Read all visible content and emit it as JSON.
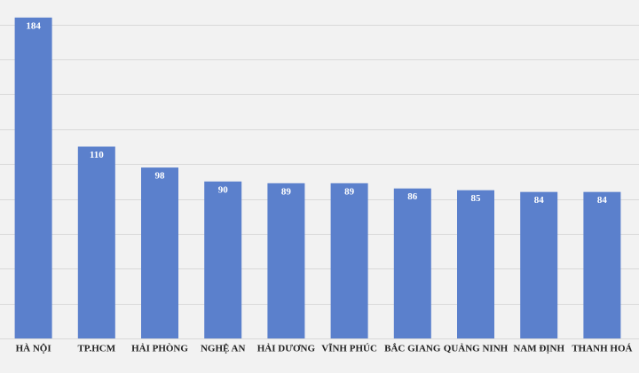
{
  "chart_data": {
    "type": "bar",
    "categories": [
      "HÀ NỘI",
      "TP.HCM",
      "HẢI PHÒNG",
      "NGHỆ AN",
      "HẢI DƯƠNG",
      "VĨNH PHÚC",
      "BẮC GIANG",
      "QUẢNG NINH",
      "NAM ĐỊNH",
      "THANH HOÁ"
    ],
    "values": [
      184,
      110,
      98,
      90,
      89,
      89,
      86,
      85,
      84,
      84
    ],
    "color": "#5b80cc",
    "ylim": [
      0,
      190
    ],
    "yticks": [
      0,
      20,
      40,
      60,
      80,
      100,
      120,
      140,
      160,
      180
    ],
    "grid": true
  }
}
